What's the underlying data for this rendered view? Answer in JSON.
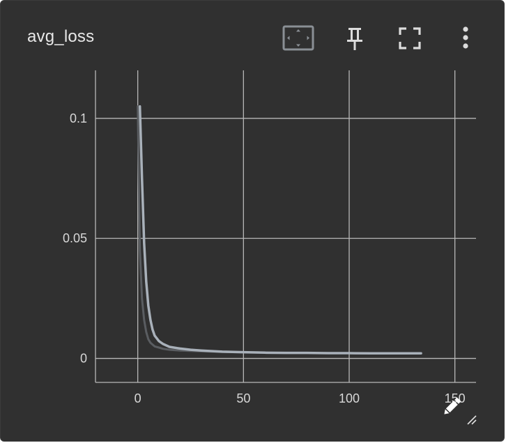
{
  "card": {
    "title": "avg_loss"
  },
  "toolbar": {
    "icons": [
      "fit-domain-icon",
      "pin-icon",
      "fullscreen-icon",
      "more-vert-icon"
    ]
  },
  "colors": {
    "background": "#303030",
    "grid": "#b8b8b8",
    "line": "#a9b1ba",
    "line_raw": "#5a5d61",
    "text": "#e8e8e8",
    "accent": "#8a8f95"
  },
  "chart_data": {
    "type": "line",
    "title": "avg_loss",
    "xlabel": "",
    "ylabel": "",
    "xlim": [
      -20,
      160
    ],
    "ylim": [
      -0.01,
      0.12
    ],
    "x_ticks": [
      0,
      50,
      100,
      150
    ],
    "y_ticks": [
      0,
      0.05,
      0.1
    ],
    "x_tick_labels": [
      "0",
      "50",
      "100",
      "150"
    ],
    "y_tick_labels": [
      "0",
      "0.05",
      "0.1"
    ],
    "grid": true,
    "series": [
      {
        "role": "smoothed",
        "x": [
          1,
          2,
          3,
          4,
          5,
          6,
          7,
          8,
          10,
          12,
          15,
          20,
          25,
          30,
          40,
          50,
          60,
          70,
          80,
          90,
          100,
          110,
          120,
          134
        ],
        "y": [
          0.105,
          0.075,
          0.048,
          0.032,
          0.022,
          0.016,
          0.012,
          0.0095,
          0.0072,
          0.006,
          0.0048,
          0.0041,
          0.0036,
          0.0033,
          0.0028,
          0.0026,
          0.0024,
          0.0023,
          0.0023,
          0.0022,
          0.0022,
          0.0021,
          0.0021,
          0.0021
        ]
      },
      {
        "role": "raw",
        "x": [
          0,
          1,
          2,
          3,
          4,
          5,
          6,
          8,
          10,
          12,
          15,
          20,
          30,
          40,
          50
        ],
        "y": [
          0.105,
          0.045,
          0.025,
          0.016,
          0.011,
          0.008,
          0.0065,
          0.005,
          0.0045,
          0.004,
          0.0036,
          0.0033,
          0.003,
          0.0027,
          0.0025
        ]
      }
    ]
  }
}
